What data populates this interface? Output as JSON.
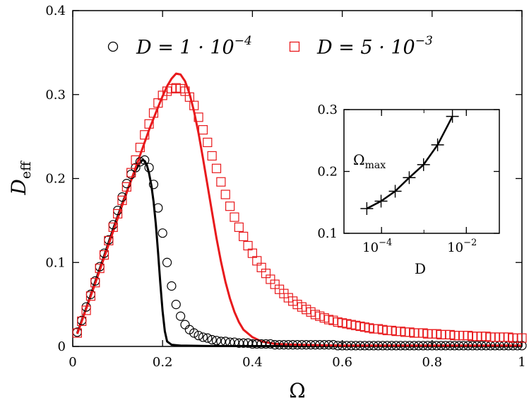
{
  "chart_data": [
    {
      "type": "scatter",
      "xlabel": "Ω",
      "ylabel": "D_eff",
      "xlim": [
        0,
        1
      ],
      "ylim": [
        0,
        0.4
      ],
      "x_ticks": [
        "0",
        "0.2",
        "0.4",
        "0.6",
        "0.8",
        "1"
      ],
      "y_ticks": [
        "0",
        "0.1",
        "0.2",
        "0.3",
        "0.4"
      ],
      "legend_position": "top",
      "series": [
        {
          "name": "D = 1·10^-4",
          "legend_text": "D = 1 · 10",
          "legend_exp": "−4",
          "marker": "circle",
          "color": "#000000",
          "x": [
            0.01,
            0.02,
            0.03,
            0.04,
            0.05,
            0.06,
            0.07,
            0.08,
            0.09,
            0.1,
            0.11,
            0.12,
            0.13,
            0.14,
            0.15,
            0.16,
            0.17,
            0.18,
            0.19,
            0.2,
            0.21,
            0.22,
            0.23,
            0.24,
            0.25,
            0.26,
            0.27,
            0.28,
            0.29,
            0.3,
            0.31,
            0.32,
            0.33,
            0.34,
            0.35,
            0.36,
            0.37,
            0.38,
            0.39,
            0.4,
            0.41,
            0.42,
            0.43,
            0.44,
            0.45,
            0.46,
            0.47,
            0.48,
            0.49,
            0.5,
            0.51,
            0.52,
            0.53,
            0.54,
            0.55,
            0.56,
            0.57,
            0.58,
            0.59,
            0.6,
            0.61,
            0.62,
            0.63,
            0.64,
            0.65,
            0.66,
            0.67,
            0.68,
            0.69,
            0.7,
            0.71,
            0.72,
            0.73,
            0.74,
            0.75,
            0.76,
            0.77,
            0.78,
            0.79,
            0.8,
            0.81,
            0.82,
            0.83,
            0.84,
            0.85,
            0.86,
            0.87,
            0.88,
            0.89,
            0.9,
            0.91,
            0.92,
            0.93,
            0.94,
            0.95,
            0.96,
            0.97,
            0.98,
            0.99,
            1.0
          ],
          "y": [
            0.017,
            0.031,
            0.047,
            0.062,
            0.078,
            0.095,
            0.111,
            0.127,
            0.145,
            0.162,
            0.178,
            0.194,
            0.205,
            0.213,
            0.22,
            0.222,
            0.213,
            0.193,
            0.165,
            0.135,
            0.1,
            0.072,
            0.05,
            0.036,
            0.026,
            0.02,
            0.016,
            0.013,
            0.011,
            0.01,
            0.008,
            0.007,
            0.006,
            0.006,
            0.005,
            0.005,
            0.004,
            0.004,
            0.004,
            0.003,
            0.003,
            0.003,
            0.003,
            0.003,
            0.002,
            0.002,
            0.002,
            0.002,
            0.002,
            0.002,
            0.002,
            0.002,
            0.002,
            0.002,
            0.002,
            0.002,
            0.002,
            0.002,
            0.001,
            0.001,
            0.001,
            0.001,
            0.001,
            0.001,
            0.001,
            0.001,
            0.001,
            0.001,
            0.001,
            0.001,
            0.001,
            0.001,
            0.001,
            0.001,
            0.001,
            0.001,
            0.001,
            0.001,
            0.001,
            0.001,
            0.001,
            0.001,
            0.001,
            0.001,
            0.001,
            0.001,
            0.001,
            0.001,
            0.001,
            0.001,
            0.001,
            0.001,
            0.001,
            0.001,
            0.001,
            0.001,
            0.001,
            0.001,
            0.001,
            0.001
          ]
        },
        {
          "name": "D = 5·10^-3",
          "legend_text": "D = 5 · 10",
          "legend_exp": "−3",
          "marker": "square",
          "color": "#e8191c",
          "x": [
            0.01,
            0.02,
            0.03,
            0.04,
            0.05,
            0.06,
            0.07,
            0.08,
            0.09,
            0.1,
            0.11,
            0.12,
            0.13,
            0.14,
            0.15,
            0.16,
            0.17,
            0.18,
            0.19,
            0.2,
            0.21,
            0.22,
            0.23,
            0.24,
            0.25,
            0.26,
            0.27,
            0.28,
            0.29,
            0.3,
            0.31,
            0.32,
            0.33,
            0.34,
            0.35,
            0.36,
            0.37,
            0.38,
            0.39,
            0.4,
            0.41,
            0.42,
            0.43,
            0.44,
            0.45,
            0.46,
            0.47,
            0.48,
            0.49,
            0.5,
            0.51,
            0.52,
            0.53,
            0.54,
            0.55,
            0.56,
            0.57,
            0.58,
            0.59,
            0.6,
            0.61,
            0.62,
            0.63,
            0.64,
            0.65,
            0.66,
            0.67,
            0.68,
            0.69,
            0.7,
            0.71,
            0.72,
            0.73,
            0.74,
            0.75,
            0.76,
            0.77,
            0.78,
            0.79,
            0.8,
            0.81,
            0.82,
            0.83,
            0.84,
            0.85,
            0.86,
            0.87,
            0.88,
            0.89,
            0.9,
            0.91,
            0.92,
            0.93,
            0.94,
            0.95,
            0.96,
            0.97,
            0.98,
            0.99,
            1.0
          ],
          "y": [
            0.016,
            0.03,
            0.043,
            0.06,
            0.076,
            0.093,
            0.109,
            0.126,
            0.142,
            0.158,
            0.174,
            0.19,
            0.207,
            0.222,
            0.237,
            0.252,
            0.265,
            0.278,
            0.29,
            0.299,
            0.304,
            0.307,
            0.308,
            0.307,
            0.304,
            0.297,
            0.287,
            0.273,
            0.258,
            0.243,
            0.227,
            0.212,
            0.196,
            0.181,
            0.167,
            0.154,
            0.142,
            0.131,
            0.12,
            0.111,
            0.102,
            0.094,
            0.087,
            0.08,
            0.074,
            0.068,
            0.063,
            0.058,
            0.054,
            0.05,
            0.047,
            0.044,
            0.041,
            0.038,
            0.036,
            0.034,
            0.032,
            0.031,
            0.029,
            0.028,
            0.027,
            0.026,
            0.025,
            0.024,
            0.023,
            0.022,
            0.021,
            0.021,
            0.02,
            0.019,
            0.019,
            0.018,
            0.018,
            0.017,
            0.017,
            0.016,
            0.016,
            0.016,
            0.015,
            0.015,
            0.015,
            0.014,
            0.014,
            0.014,
            0.013,
            0.013,
            0.013,
            0.013,
            0.012,
            0.012,
            0.012,
            0.012,
            0.011,
            0.011,
            0.011,
            0.011,
            0.011,
            0.01,
            0.01,
            0.01
          ]
        },
        {
          "name": "theory D = 1·10^-4",
          "style": "line",
          "color": "#000000",
          "x": [
            0.01,
            0.03,
            0.05,
            0.07,
            0.09,
            0.11,
            0.13,
            0.14,
            0.15,
            0.155,
            0.16,
            0.165,
            0.17,
            0.175,
            0.18,
            0.185,
            0.19,
            0.195,
            0.2,
            0.205,
            0.21,
            0.22,
            0.24,
            0.3,
            0.4,
            0.6,
            0.8,
            1.0
          ],
          "y": [
            0.016,
            0.046,
            0.077,
            0.108,
            0.14,
            0.17,
            0.198,
            0.21,
            0.219,
            0.222,
            0.221,
            0.216,
            0.206,
            0.192,
            0.172,
            0.145,
            0.112,
            0.075,
            0.042,
            0.018,
            0.006,
            0.002,
            0.001,
            0.0005,
            0.0004,
            0.0003,
            0.0002,
            0.0002
          ]
        },
        {
          "name": "theory D = 5·10^-3",
          "style": "line",
          "color": "#e8191c",
          "x": [
            0.01,
            0.03,
            0.05,
            0.07,
            0.09,
            0.11,
            0.13,
            0.15,
            0.17,
            0.19,
            0.2,
            0.21,
            0.22,
            0.23,
            0.24,
            0.25,
            0.26,
            0.27,
            0.28,
            0.29,
            0.3,
            0.31,
            0.32,
            0.33,
            0.34,
            0.35,
            0.36,
            0.37,
            0.38,
            0.4,
            0.42,
            0.45,
            0.5,
            0.6,
            0.8,
            1.0
          ],
          "y": [
            0.015,
            0.045,
            0.075,
            0.106,
            0.137,
            0.168,
            0.198,
            0.228,
            0.258,
            0.285,
            0.298,
            0.31,
            0.319,
            0.325,
            0.324,
            0.316,
            0.301,
            0.28,
            0.254,
            0.224,
            0.192,
            0.16,
            0.129,
            0.101,
            0.077,
            0.057,
            0.041,
            0.029,
            0.02,
            0.011,
            0.006,
            0.003,
            0.002,
            0.001,
            0.001,
            0.001
          ]
        }
      ]
    },
    {
      "type": "line",
      "xlabel": "D",
      "ylabel": "Ω_max",
      "x_scale": "log",
      "xlim": [
        1.3e-05,
        0.06
      ],
      "ylim": [
        0.1,
        0.3
      ],
      "x_ticks": [
        {
          "value": 0.0001,
          "base": "10",
          "exp": "−4"
        },
        {
          "value": 0.01,
          "base": "10",
          "exp": "−2"
        }
      ],
      "y_ticks": [
        "0.1",
        "0.2",
        "0.3"
      ],
      "series": [
        {
          "marker": "plus",
          "color": "#000000",
          "x": [
            4.5e-05,
            9.75e-05,
            0.00021,
            0.00045,
            0.00098,
            0.0021,
            0.0047
          ],
          "y": [
            0.14,
            0.152,
            0.168,
            0.19,
            0.211,
            0.243,
            0.289
          ]
        }
      ]
    }
  ]
}
